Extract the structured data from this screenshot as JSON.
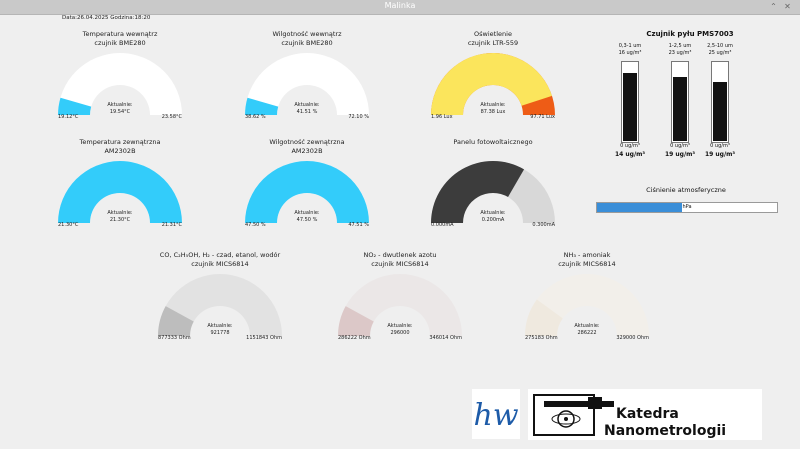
{
  "window": {
    "title": "Malinka",
    "minimize": "⌃",
    "close": "✕"
  },
  "datetime": "Data:26.04.2025 Godzina:18:20",
  "gauges": [
    {
      "id": "temp-in",
      "title1": "Temperatura wewnątrz",
      "title2": "czujnik BME280",
      "current_label": "Aktualnie:",
      "current": "19.54°C",
      "min": "19.12°C",
      "max": "23.58°C",
      "fraction": 0.09,
      "color": "#33ccfa",
      "bg": "#ffffff"
    },
    {
      "id": "hum-in",
      "title1": "Wilgotność wewnątrz",
      "title2": "czujnik BME280",
      "current_label": "Aktualnie:",
      "current": "41.51 %",
      "min": "38.62 %",
      "max": "72.10 %",
      "fraction": 0.09,
      "color": "#33ccfa",
      "bg": "#ffffff"
    },
    {
      "id": "light",
      "title1": "Oświetlenie",
      "title2": "czujnik LTR-559",
      "current_label": "Aktualnie:",
      "current": "87.38 Lux",
      "min": "1.96 Lux",
      "max": "97.71 Lux",
      "fraction": 0.9,
      "color": "#fbe55c",
      "bg": "#ee5c16"
    },
    {
      "id": "temp-out",
      "title1": "Temperatura zewnątrzna",
      "title2": "AM2302B",
      "current_label": "Aktualnie:",
      "current": "21.30°C",
      "min": "21.30°C",
      "max": "21.31°C",
      "fraction": 1.0,
      "color": "#33ccfa",
      "bg": "#ffffff"
    },
    {
      "id": "hum-out",
      "title1": "Wilgotność zewnątrzna",
      "title2": "AM2302B",
      "current_label": "Aktualnie:",
      "current": "47.50 %",
      "min": "47.50 %",
      "max": "47.51 %",
      "fraction": 1.0,
      "color": "#33ccfa",
      "bg": "#ffffff"
    },
    {
      "id": "solar",
      "title1": "Panelu fotowoltaicznego",
      "title2": "",
      "current_label": "Aktualnie:",
      "current": "0.200mA",
      "min": "0.000mA",
      "max": "0.300mA",
      "fraction": 0.667,
      "color": "#3c3c3c",
      "bg": "#d8d8d8"
    },
    {
      "id": "gas-co",
      "title1": "CO, C₂H₅OH, H₂ - czad, etanol, wodór",
      "title2": "czujnik MICS6814",
      "current_label": "Aktualnie:",
      "current": "921778",
      "min": "877333 Ohm",
      "max": "1151843 Ohm",
      "fraction": 0.16,
      "color": "#bdbdbd",
      "bg": "#e2e2e2"
    },
    {
      "id": "gas-no2",
      "title1": "NO₂ - dwutlenek azotu",
      "title2": "czujnik MICS6814",
      "current_label": "Aktualnie:",
      "current": "296000",
      "min": "286222 Ohm",
      "max": "346014 Ohm",
      "fraction": 0.16,
      "color": "#dcc8c8",
      "bg": "#ebe7e7"
    },
    {
      "id": "gas-nh3",
      "title1": "NH₃ - amoniak",
      "title2": "czujnik MICS6814",
      "current_label": "Aktualnie:",
      "current": "286222",
      "min": "275183 Ohm",
      "max": "329000 Ohm",
      "fraction": 0.2,
      "color": "#efe9df",
      "bg": "#f2efea"
    }
  ],
  "pms": {
    "title": "Czujnik pyłu PMS7003",
    "bars": [
      {
        "range": "0,3-1 um",
        "max": "16 ug/m³",
        "zero": "0 ug/m³",
        "value": "14 ug/m³",
        "fraction": 0.875
      },
      {
        "range": "1-2,5 um",
        "max": "23 ug/m³",
        "zero": "0 ug/m³",
        "value": "19 ug/m³",
        "fraction": 0.826
      },
      {
        "range": "2,5-10 um",
        "max": "25 ug/m³",
        "zero": "0 ug/m³",
        "value": "19 ug/m³",
        "fraction": 0.76
      }
    ]
  },
  "pressure": {
    "label": "Ciśnienie atmosferyczne",
    "text": "hPa",
    "fraction": 0.47
  },
  "logos": {
    "left_symbol": "hw",
    "right_line1": "Katedra",
    "right_line2": "Nanometrologii"
  }
}
